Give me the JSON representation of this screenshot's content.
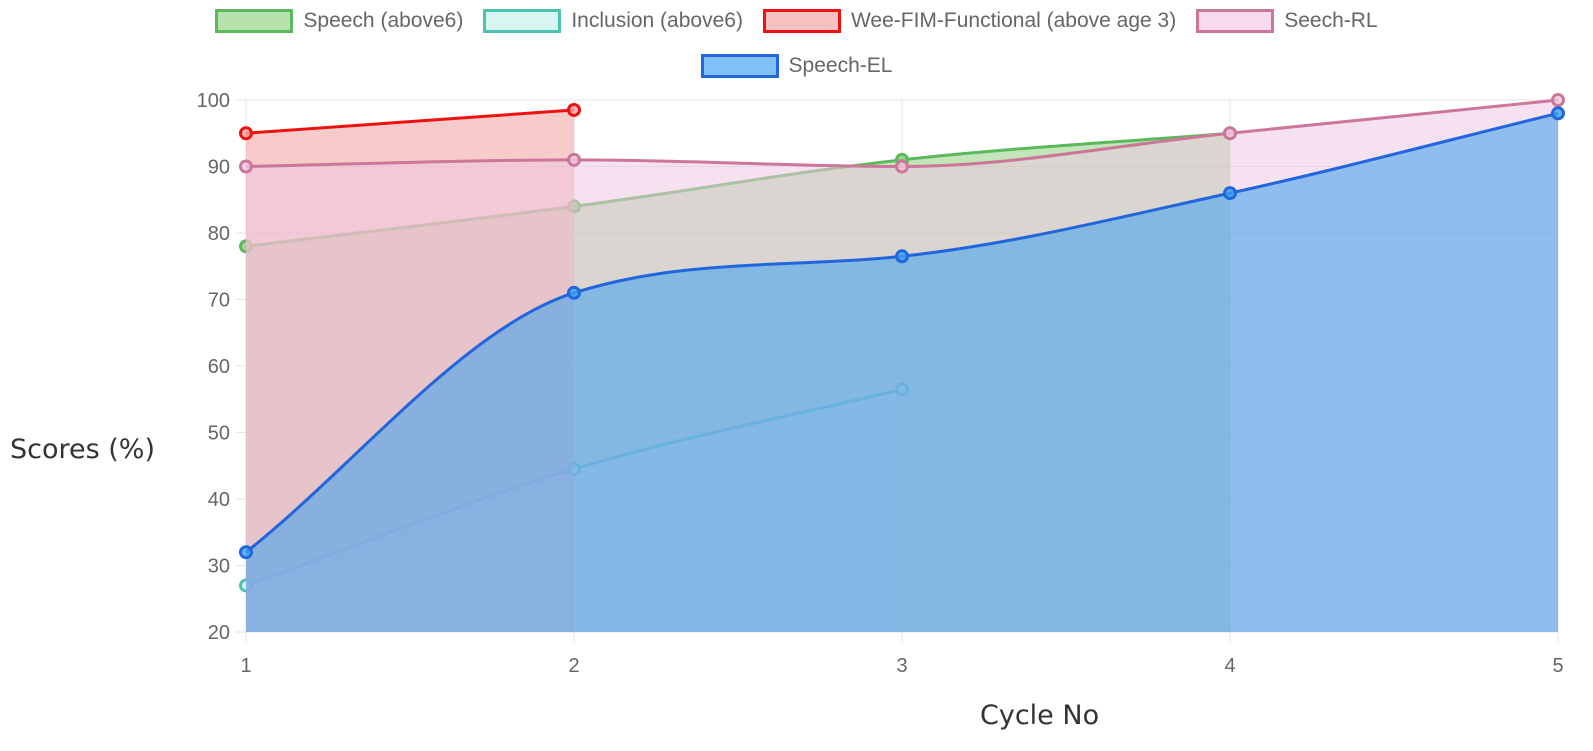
{
  "chart_data": {
    "type": "area",
    "x": [
      1,
      2,
      3,
      4,
      5
    ],
    "xlabel": "Cycle No",
    "ylabel": "Scores (%)",
    "ylim": [
      20,
      100
    ],
    "yticks": [
      20,
      30,
      40,
      50,
      60,
      70,
      80,
      90,
      100
    ],
    "grid": true,
    "legend_position": "top",
    "series": [
      {
        "name": "Speech (above6)",
        "values": [
          78,
          84,
          91,
          95,
          null
        ],
        "line_color": "#5cb85c",
        "fill_color": "#8fcf7f"
      },
      {
        "name": "Inclusion (above6)",
        "values": [
          27,
          44.5,
          56.5,
          null,
          null
        ],
        "line_color": "#4cc3b0",
        "fill_color": "#c2f1ea"
      },
      {
        "name": "Wee-FIM-Functional (above age 3)",
        "values": [
          95,
          98.5,
          null,
          null,
          null
        ],
        "line_color": "#ee1111",
        "fill_color": "#f3a0a0"
      },
      {
        "name": "Seech-RL",
        "values": [
          90,
          91,
          90,
          95,
          100
        ],
        "line_color": "#cc7799",
        "fill_color": "#efc8e3"
      },
      {
        "name": "Speech-EL",
        "values": [
          32,
          71,
          76.5,
          86,
          98
        ],
        "line_color": "#2266dd",
        "fill_color": "#3aa0f0"
      }
    ]
  }
}
